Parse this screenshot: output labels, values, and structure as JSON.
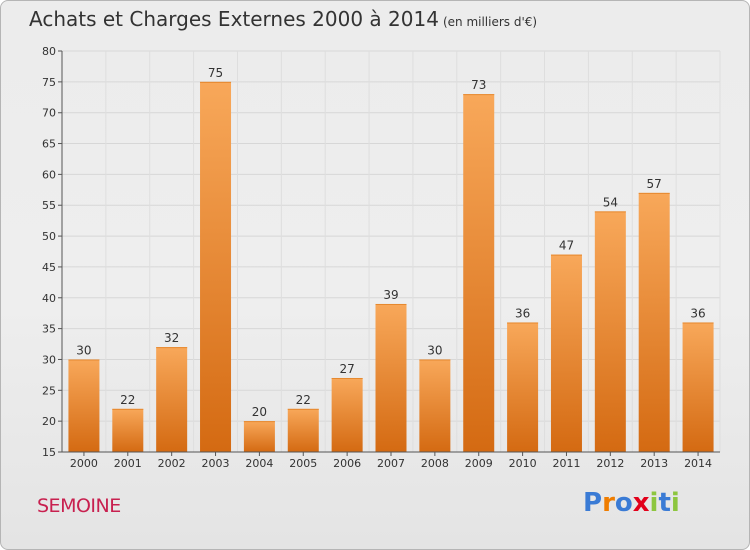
{
  "title": "Achats et Charges Externes 2000 à 2014",
  "subtitle": "(en milliers d'€)",
  "commune": "SEMOINE",
  "logo": {
    "text": "Proxiti",
    "letter_colors": [
      "#3a7bd5",
      "#ef7d00",
      "#3a7bd5",
      "#e2001a",
      "#8dc63f",
      "#3a7bd5",
      "#8dc63f"
    ]
  },
  "colors": {
    "bar_light": "#f8a85a",
    "bar_dark": "#d46a12",
    "commune": "#c8204f"
  },
  "chart_data": {
    "type": "bar",
    "categories": [
      "2000",
      "2001",
      "2002",
      "2003",
      "2004",
      "2005",
      "2006",
      "2007",
      "2008",
      "2009",
      "2010",
      "2011",
      "2012",
      "2013",
      "2014"
    ],
    "values": [
      30,
      22,
      32,
      75,
      20,
      22,
      27,
      39,
      30,
      73,
      36,
      47,
      54,
      57,
      36
    ],
    "title": "Achats et Charges Externes 2000 à 2014",
    "subtitle": "(en milliers d'€)",
    "xlabel": "",
    "ylabel": "",
    "ylim": [
      15,
      80
    ],
    "yticks": [
      15,
      20,
      25,
      30,
      35,
      40,
      45,
      50,
      55,
      60,
      65,
      70,
      75,
      80
    ],
    "grid": true,
    "data_labels": true
  }
}
